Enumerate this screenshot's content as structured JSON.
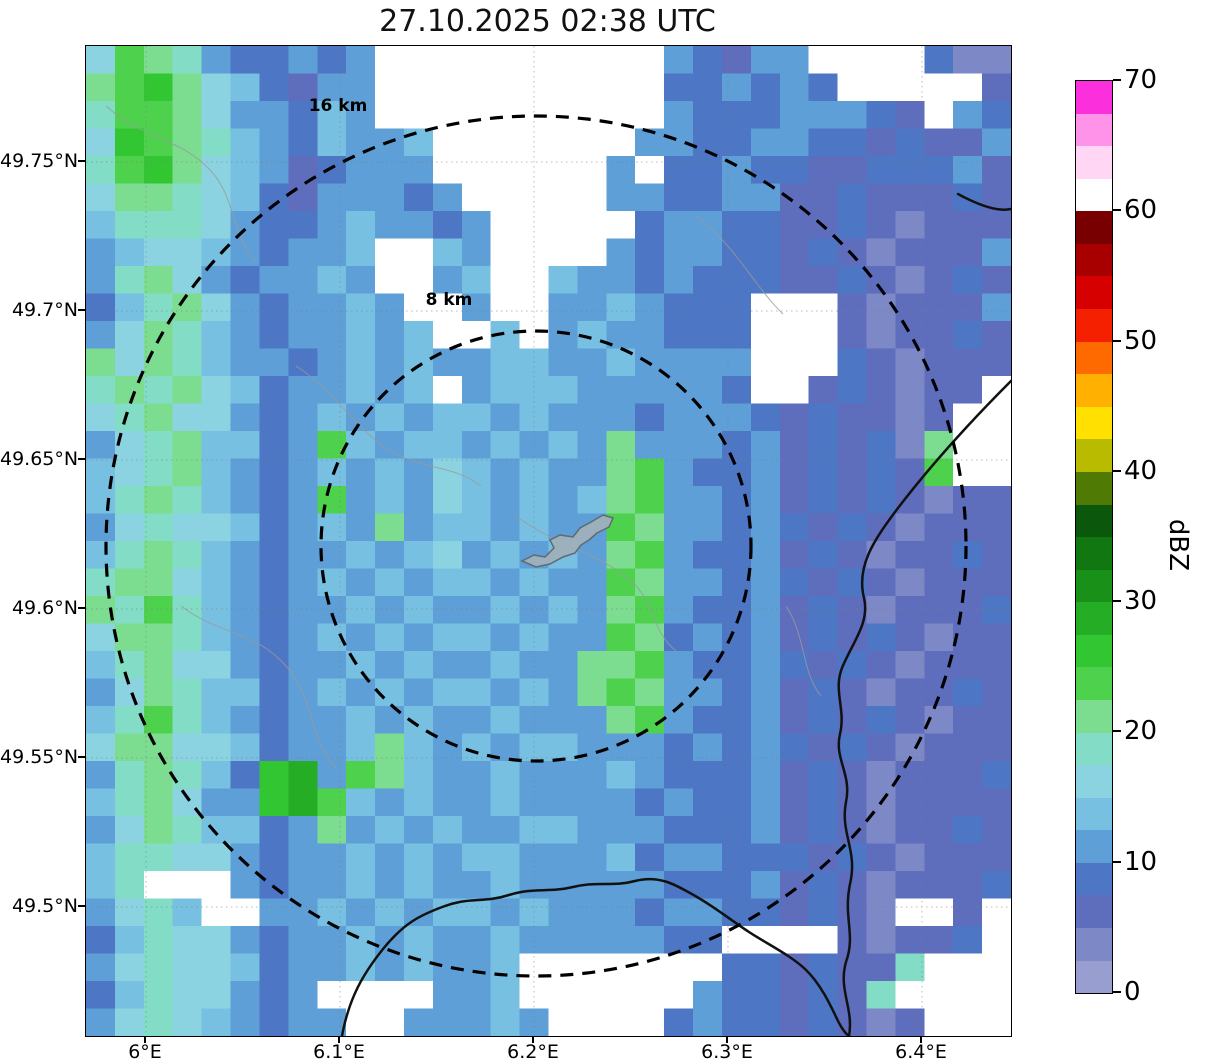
{
  "title": "27.10.2025 02:38 UTC",
  "axes": {
    "lat_ticks": [
      "49.75°N",
      "49.7°N",
      "49.65°N",
      "49.6°N",
      "49.55°N",
      "49.5°N"
    ],
    "lon_ticks": [
      "6°E",
      "6.1°E",
      "6.2°E",
      "6.3°E",
      "6.4°E"
    ]
  },
  "rings": [
    {
      "label": "8 km"
    },
    {
      "label": "16 km"
    }
  ],
  "colorbar": {
    "label": "dBZ",
    "ticks": [
      0,
      10,
      20,
      30,
      40,
      50,
      60,
      70
    ],
    "min": 0,
    "max": 70,
    "colors": [
      "#989fd0",
      "#7d88c6",
      "#5f6dbd",
      "#4d76c4",
      "#5d9fd6",
      "#77c0e2",
      "#8cd3e2",
      "#82dcc6",
      "#7cdc90",
      "#4ed24e",
      "#32c632",
      "#25ad25",
      "#199119",
      "#117811",
      "#0b570b",
      "#4f7a04",
      "#b8bb00",
      "#ffe000",
      "#ffb000",
      "#ff6a00",
      "#f42000",
      "#d60000",
      "#a80000",
      "#780000",
      "#ffffff",
      "#ffd7f5",
      "#ff93e9",
      "#fb30dc"
    ]
  },
  "chart_data": {
    "type": "heatmap",
    "title": "27.10.2025 02:38 UTC",
    "value_units": "dBZ",
    "colorbar_range": [
      0,
      70
    ],
    "colorbar_ticks": [
      0,
      10,
      20,
      30,
      40,
      50,
      60,
      70
    ],
    "level_step_dbz": 2.5,
    "lat_ticks": [
      "49.75°N",
      "49.7°N",
      "49.65°N",
      "49.6°N",
      "49.55°N",
      "49.5°N"
    ],
    "lon_ticks": [
      "6°E",
      "6.1°E",
      "6.2°E",
      "6.3°E",
      "6.4°E"
    ],
    "range_rings_km": [
      8,
      16
    ],
    "grid_note": "Rows north to south, columns west to east. '.' = no echo (white). Hex digit n = reflectivity band spanning n*2.5 to (n+1)*2.5 dBZ, drawn with palette[n].",
    "palette": [
      "#989fd0",
      "#7d88c6",
      "#5f6dbd",
      "#4d76c4",
      "#5d9fd6",
      "#77c0e2",
      "#8cd3e2",
      "#82dcc6",
      "#7cdc90",
      "#4ed24e",
      "#32c632",
      "#25ad25",
      "#199119",
      "#117811",
      "#0b570b",
      "#4f7a04",
      "#b8bb00",
      "#ffe000",
      "#ffb000",
      "#ff6a00",
      "#f42000",
      "#d60000",
      "#a80000",
      "#780000",
      "#ffffff",
      "#ffd7f5",
      "#ff93e9",
      "#fb30dc"
    ],
    "grid": [
      "6987433434..........43244....311",
      "89a8653244..........334343.....2",
      "7998644354..........433344432.43",
      "6a9875435445.......4433443323224",
      "79a865423444......4.334332233342",
      "6887653244434.....44334422322232",
      "57776433454434.....3443322321222",
      "4566543445..54....43443323212224",
      "4786434454..45..5443433322321232",
      "35786434454..4..4454333...212224",
      "468754344545..5.4544333...212232",
      "86875443454544554454444...321222",
      "787865344545.4555444443..232122.",
      "678664345454554544434443232212..",
      "467855349545545454844434232318..",
      "567854345454654544894334232329..",
      "57875434945465454589443423232122",
      "46766534548455454498443432321222",
      "57875434454564545489433423212232",
      "78865434545455454498443432321222",
      "87975434454544545489433423212223",
      "68875434545455454498343423232122",
      "57866434454544544889433432321222",
      "46875534545455454898443423212232",
      "57975434454544544489433423232122",
      "68866534458545455444343432321222",
      "478753ab498544544454333423212223",
      "578644ab954544544443433423212222",
      "46875534845454455444333423212232",
      "57766434454545544453443332321222",
      "57...434454544544444333423212223",
      "4675..4454545545444344332321..2.",
      "3576643445454454444433....21223.",
      "467665344545445.......3323227...",
      "35766434....445......4332327....",
      "467654344..44454....343323212..."
    ]
  }
}
